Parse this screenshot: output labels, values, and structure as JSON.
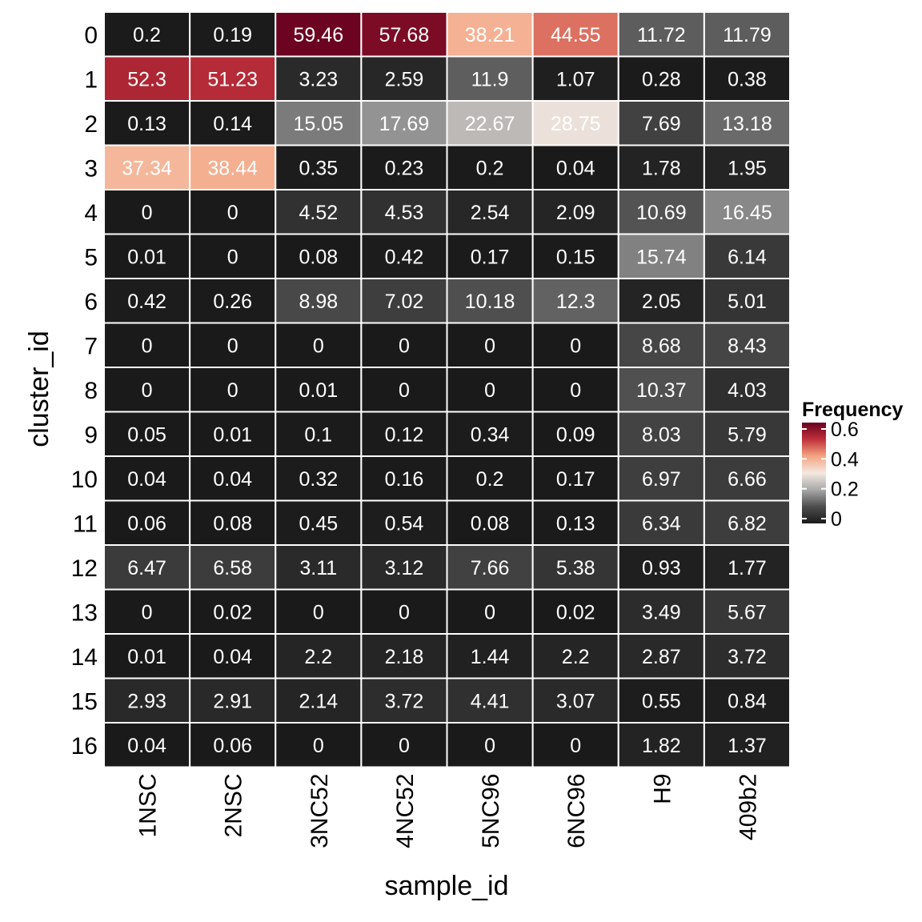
{
  "chart_data": {
    "type": "heatmap",
    "xlabel": "sample_id",
    "ylabel": "cluster_id",
    "x_categories": [
      "1NSC",
      "2NSC",
      "3NC52",
      "4NC52",
      "5NC96",
      "6NC96",
      "H9",
      "409b2"
    ],
    "y_categories": [
      "0",
      "1",
      "2",
      "3",
      "4",
      "5",
      "6",
      "7",
      "8",
      "9",
      "10",
      "11",
      "12",
      "13",
      "14",
      "15",
      "16"
    ],
    "values": [
      [
        0.2,
        0.19,
        59.46,
        57.68,
        38.21,
        44.55,
        11.72,
        11.79
      ],
      [
        52.3,
        51.23,
        3.23,
        2.59,
        11.9,
        1.07,
        0.28,
        0.38
      ],
      [
        0.13,
        0.14,
        15.05,
        17.69,
        22.67,
        28.75,
        7.69,
        13.18
      ],
      [
        37.34,
        38.44,
        0.35,
        0.23,
        0.2,
        0.04,
        1.78,
        1.95
      ],
      [
        0,
        0,
        4.52,
        4.53,
        2.54,
        2.09,
        10.69,
        16.45
      ],
      [
        0.01,
        0,
        0.08,
        0.42,
        0.17,
        0.15,
        15.74,
        6.14
      ],
      [
        0.42,
        0.26,
        8.98,
        7.02,
        10.18,
        12.3,
        2.05,
        5.01
      ],
      [
        0,
        0,
        0,
        0,
        0,
        0,
        8.68,
        8.43
      ],
      [
        0,
        0,
        0.01,
        0,
        0,
        0,
        10.37,
        4.03
      ],
      [
        0.05,
        0.01,
        0.1,
        0.12,
        0.34,
        0.09,
        8.03,
        5.79
      ],
      [
        0.04,
        0.04,
        0.32,
        0.16,
        0.2,
        0.17,
        6.97,
        6.66
      ],
      [
        0.06,
        0.08,
        0.45,
        0.54,
        0.08,
        0.13,
        6.34,
        6.82
      ],
      [
        6.47,
        6.58,
        3.11,
        3.12,
        7.66,
        5.38,
        0.93,
        1.77
      ],
      [
        0,
        0.02,
        0,
        0,
        0,
        0.02,
        3.49,
        5.67
      ],
      [
        0.01,
        0.04,
        2.2,
        2.18,
        1.44,
        2.2,
        2.87,
        3.72
      ],
      [
        2.93,
        2.91,
        2.14,
        3.72,
        4.41,
        3.07,
        0.55,
        0.84
      ],
      [
        0.04,
        0.06,
        0,
        0,
        0,
        0,
        1.82,
        1.37
      ]
    ],
    "legend": {
      "title": "Frequency",
      "ticks": [
        0,
        0.2,
        0.4,
        0.6
      ],
      "tick_labels": [
        "0",
        "0.2",
        "0.4",
        "0.6"
      ],
      "range": [
        0,
        0.6
      ],
      "position": "right"
    },
    "color_scale": {
      "stops": [
        {
          "value": 0,
          "color": "#1a1a1a"
        },
        {
          "value": 0.1,
          "color": "#4d4d4d"
        },
        {
          "value": 0.2,
          "color": "#a8a8a8"
        },
        {
          "value": 0.3,
          "color": "#f4e8e1"
        },
        {
          "value": 0.4,
          "color": "#f4a582"
        },
        {
          "value": 0.5,
          "color": "#c0313a"
        },
        {
          "value": 0.6,
          "color": "#67001f"
        }
      ]
    },
    "cell_text_color": "#ffffff",
    "grid_line_color": "#ffffff"
  }
}
